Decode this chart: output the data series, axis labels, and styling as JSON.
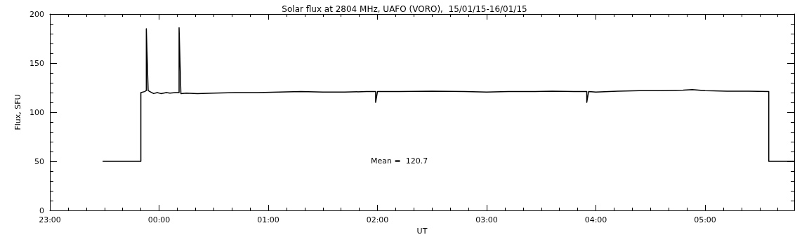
{
  "chart_data": {
    "type": "line",
    "title": "Solar flux at 2804 MHz, UAFO (VORO),  15/01/15-16/01/15",
    "xlabel": "UT",
    "ylabel": "Flux, SFU",
    "annotations": [
      "Mean =  120.7"
    ],
    "x": [
      "--01-15T23:29",
      "--01-15T23:50",
      "--01-15T23:50",
      "--01-15T23:52",
      "--01-15T23:53",
      "--01-15T23:53",
      "--01-15T23:54",
      "--01-15T23:55",
      "--01-15T23:57",
      "--01-15T23:59",
      "--01-16T00:01",
      "--01-16T00:04",
      "--01-16T00:06",
      "--01-16T00:09",
      "--01-16T00:11",
      "--01-16T00:11",
      "--01-16T00:12",
      "--01-16T00:15",
      "--01-16T00:21",
      "--01-16T00:30",
      "--01-16T00:42",
      "--01-16T00:54",
      "--01-16T01:06",
      "--01-16T01:18",
      "--01-16T01:30",
      "--01-16T01:42",
      "--01-16T01:54",
      "--01-16T01:59",
      "--01-16T01:59",
      "--01-16T02:00",
      "--01-16T02:12",
      "--01-16T02:30",
      "--01-16T02:48",
      "--01-16T03:00",
      "--01-16T03:12",
      "--01-16T03:24",
      "--01-16T03:36",
      "--01-16T03:48",
      "--01-16T03:55",
      "--01-16T03:55",
      "--01-16T03:56",
      "--01-16T04:00",
      "--01-16T04:12",
      "--01-16T04:24",
      "--01-16T04:36",
      "--01-16T04:48",
      "--01-16T04:53",
      "--01-16T05:00",
      "--01-16T05:12",
      "--01-16T05:24",
      "--01-16T05:35",
      "--01-16T05:35",
      "--01-16T05:49"
    ],
    "series": [
      {
        "color": "#000000",
        "values": [
          50,
          50,
          120,
          121,
          122,
          185,
          122,
          121,
          119,
          120,
          119,
          120,
          119.5,
          120,
          120,
          186,
          119,
          119.5,
          119,
          119.5,
          120,
          120,
          120.5,
          121,
          120.5,
          120.5,
          121,
          121,
          110,
          121,
          121,
          121.5,
          121,
          120.5,
          121,
          121,
          121.5,
          121,
          121,
          110,
          121,
          120.5,
          121.5,
          122,
          122,
          122.5,
          123,
          122,
          121.5,
          121.5,
          121,
          50,
          50
        ]
      }
    ],
    "xlim": [
      "--01-15T23:00",
      "--01-16T05:49"
    ],
    "xticks": [
      {
        "value": "--01-15T23:00",
        "label": "23:00"
      },
      {
        "value": "--01-16T00:00",
        "label": "00:00"
      },
      {
        "value": "--01-16T01:00",
        "label": "01:00"
      },
      {
        "value": "--01-16T02:00",
        "label": "02:00"
      },
      {
        "value": "--01-16T03:00",
        "label": "03:00"
      },
      {
        "value": "--01-16T04:00",
        "label": "04:00"
      },
      {
        "value": "--01-16T05:00",
        "label": "05:00"
      }
    ],
    "ylim": [
      0,
      200
    ],
    "yticks": [
      0,
      50,
      100,
      150,
      200
    ],
    "grid": false,
    "marker": "none",
    "line_style": "solid"
  }
}
